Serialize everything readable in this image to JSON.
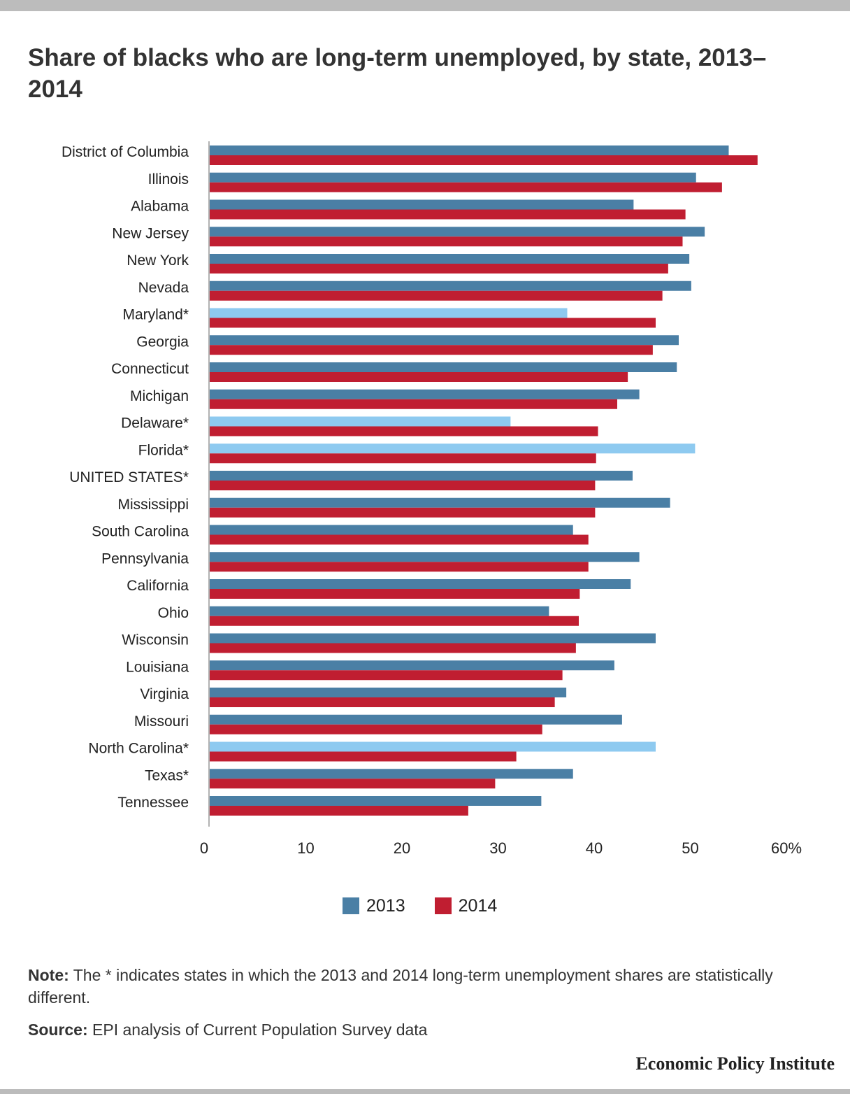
{
  "title": "Share of blacks who are long-term unemployed, by state, 2013–2014",
  "colors": {
    "series_2013": "#4a7fa5",
    "series_2013_highlight": "#8ecaf0",
    "series_2014": "#c01e31"
  },
  "chart_data": {
    "type": "bar",
    "orientation": "horizontal",
    "categories": [
      "District of Columbia",
      "Illinois",
      "Alabama",
      "New Jersey",
      "New York",
      "Nevada",
      "Maryland*",
      "Georgia",
      "Connecticut",
      "Michigan",
      "Delaware*",
      "Florida*",
      "UNITED STATES*",
      "Mississippi",
      "South Carolina",
      "Pennsylvania",
      "California",
      "Ohio",
      "Wisconsin",
      "Louisiana",
      "Virginia",
      "Missouri",
      "North Carolina*",
      "Texas*",
      "Tennessee"
    ],
    "series": [
      {
        "name": "2013",
        "values": [
          54.0,
          50.6,
          44.1,
          51.5,
          49.9,
          50.1,
          37.2,
          48.8,
          48.6,
          44.7,
          31.3,
          50.5,
          44.0,
          47.9,
          37.8,
          44.7,
          43.8,
          35.3,
          46.4,
          42.1,
          37.1,
          42.9,
          46.4,
          37.8,
          34.5
        ]
      },
      {
        "name": "2014",
        "values": [
          57.0,
          53.3,
          49.5,
          49.2,
          47.7,
          47.1,
          46.4,
          46.1,
          43.5,
          42.4,
          40.4,
          40.2,
          40.1,
          40.1,
          39.4,
          39.4,
          38.5,
          38.4,
          38.1,
          36.7,
          35.9,
          34.6,
          31.9,
          29.7,
          26.9
        ]
      }
    ],
    "highlighted_categories": [
      "Maryland*",
      "Delaware*",
      "Florida*",
      "North Carolina*"
    ],
    "x_ticks": [
      "0",
      "10",
      "20",
      "30",
      "40",
      "50",
      "60%"
    ],
    "xlim": [
      0,
      60
    ],
    "grid": false,
    "legend_position": "bottom"
  },
  "legend": {
    "items": [
      "2013",
      "2014"
    ]
  },
  "note": {
    "label": "Note:",
    "text": " The * indicates states in which the 2013 and 2014 long-term unemployment shares are statistically different."
  },
  "source": {
    "label": "Source:",
    "text": " EPI analysis of Current Population Survey data"
  },
  "brand": "Economic Policy Institute"
}
